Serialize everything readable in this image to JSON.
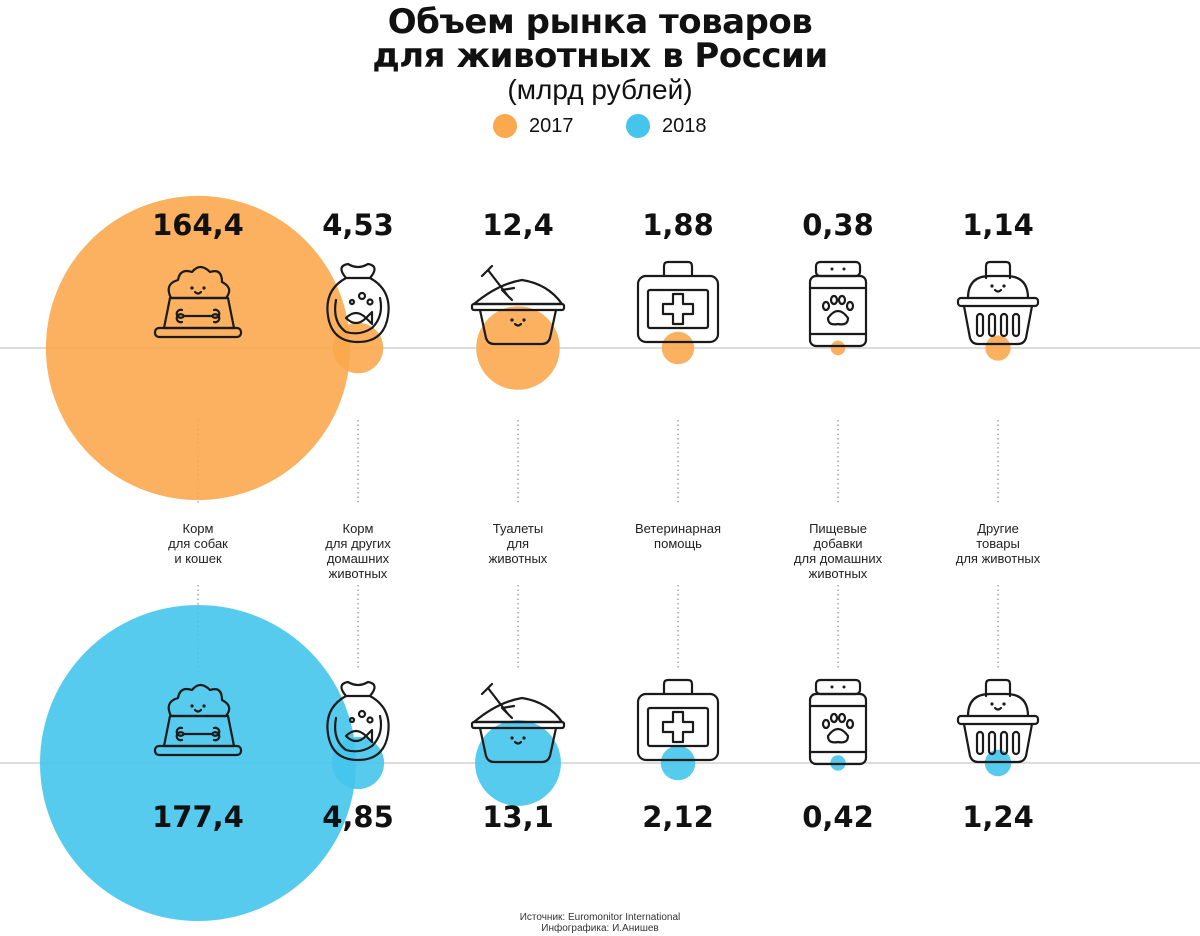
{
  "header": {
    "title_line1": "Объем рынка товаров",
    "title_line2": "для животных в России",
    "subtitle": "(млрд рублей)"
  },
  "legend": {
    "items": [
      {
        "label": "2017",
        "color": "#fba94e"
      },
      {
        "label": "2018",
        "color": "#45c5ec"
      }
    ]
  },
  "footer": {
    "source": "Источник: Euromonitor International",
    "credit": "Инфографика: И.Анишев"
  },
  "chart_data": {
    "type": "bubble",
    "title": "Объем рынка товаров для животных в России",
    "subtitle": "(млрд рублей)",
    "categories": [
      {
        "label": "Корм\nдля собак\nи кошек",
        "icon": "dog-food-bowl-icon"
      },
      {
        "label": "Корм\nдля других\nдомашних\nживотных",
        "icon": "fish-food-bag-icon"
      },
      {
        "label": "Туалеты\nдля\nживотных",
        "icon": "litter-box-icon"
      },
      {
        "label": "Ветеринарная\nпомощь",
        "icon": "first-aid-kit-icon"
      },
      {
        "label": "Пищевые\nдобавки\nдля домашних\nживотных",
        "icon": "supplement-jar-icon"
      },
      {
        "label": "Другие\nтовары\nдля животных",
        "icon": "pet-carrier-icon"
      }
    ],
    "series": [
      {
        "name": "2017",
        "color": "#fba94e",
        "values": [
          164.4,
          4.53,
          12.4,
          1.88,
          0.38,
          1.14
        ],
        "labels": [
          "164,4",
          "4,53",
          "12,4",
          "1,88",
          "0,38",
          "1,14"
        ]
      },
      {
        "name": "2018",
        "color": "#45c5ec",
        "values": [
          177.4,
          4.85,
          13.1,
          2.12,
          0.42,
          1.24
        ],
        "labels": [
          "177,4",
          "4,85",
          "13,1",
          "2,12",
          "0,42",
          "1,24"
        ]
      }
    ],
    "bubble_area_proportional_to_value": true,
    "legend_position": "top-center"
  }
}
